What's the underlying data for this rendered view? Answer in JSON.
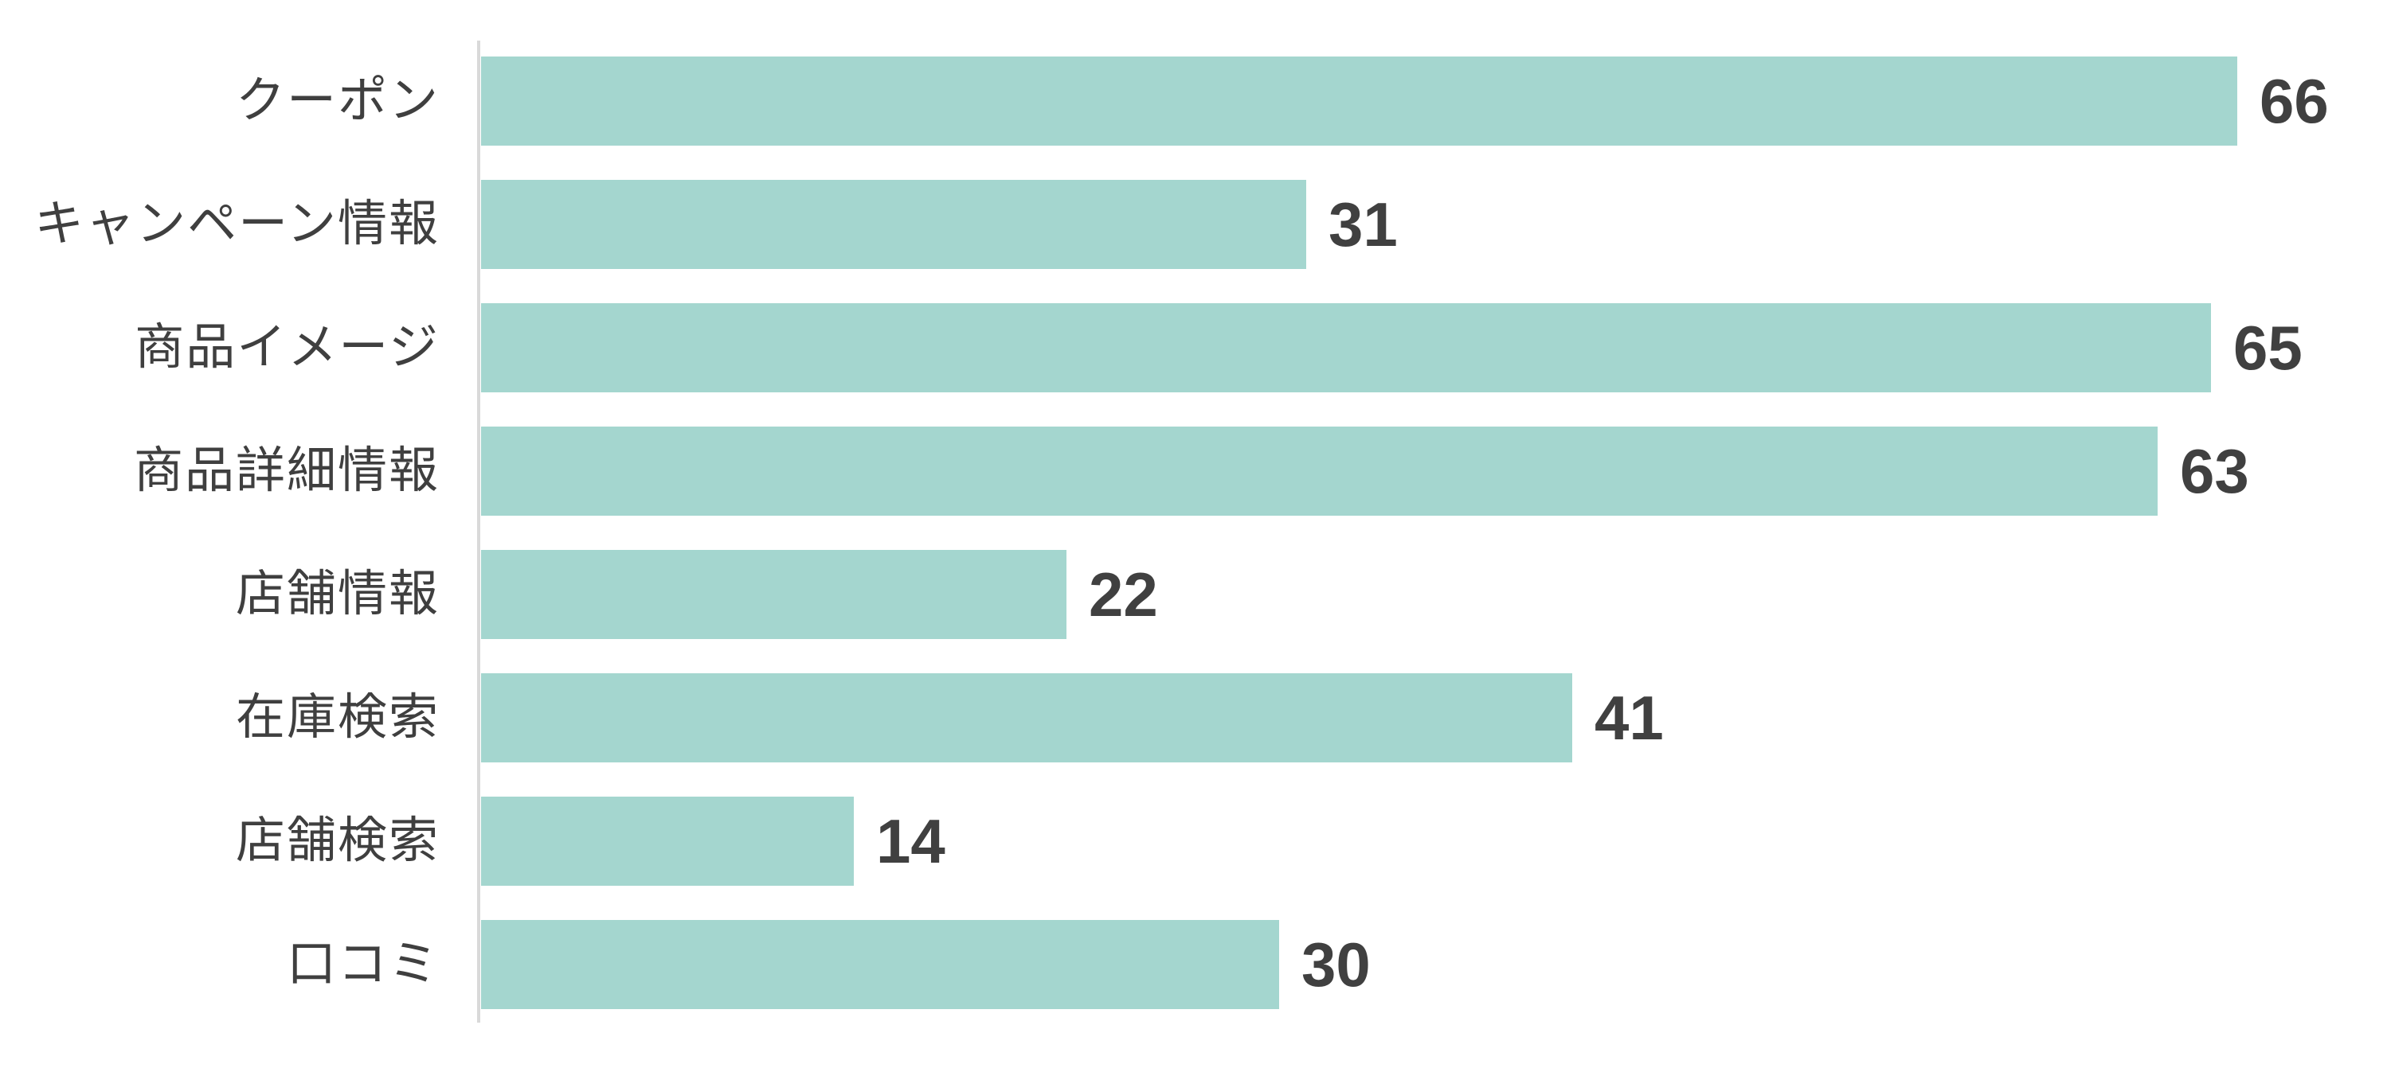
{
  "chart_data": {
    "type": "bar",
    "orientation": "horizontal",
    "title": "",
    "xlabel": "",
    "ylabel": "",
    "categories": [
      "クーポン",
      "キャンペーン情報",
      "商品イメージ",
      "商品詳細情報",
      "店舗情報",
      "在庫検索",
      "店舗検索",
      "口コミ"
    ],
    "values": [
      66,
      31,
      65,
      63,
      22,
      41,
      14,
      30
    ],
    "value_labels_shown": true,
    "grid": false,
    "legend": false,
    "xlim": [
      0,
      66
    ],
    "colors": {
      "bar": "#a4d6cf",
      "value_label": "#404040",
      "category_label": "#3f3f3f",
      "axis_line": "#d9d9d9",
      "background": "#ffffff"
    }
  }
}
